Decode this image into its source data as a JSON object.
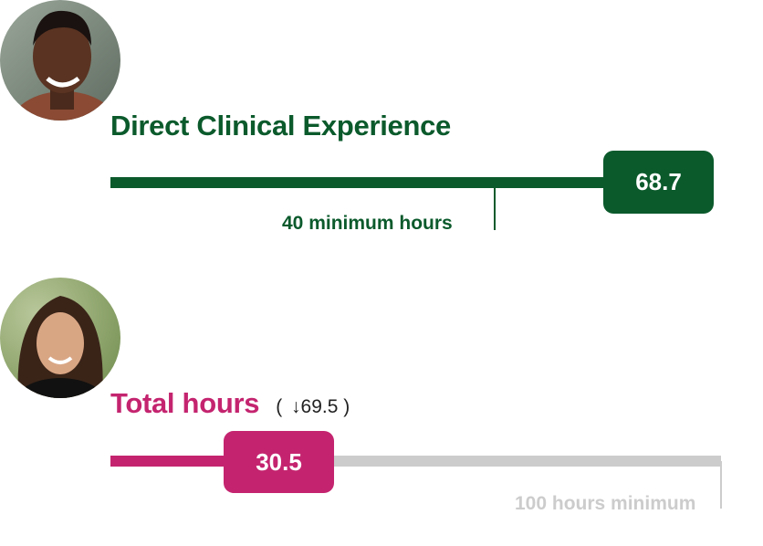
{
  "colors": {
    "green": "#0b5a2c",
    "pink": "#c4246f",
    "gray": "#cccccc"
  },
  "direct": {
    "title": "Direct Clinical Experience",
    "value": "68.7",
    "value_number": 68.7,
    "minimum_label": "40 minimum hours",
    "minimum": 40,
    "avatar_icon": "person-photo"
  },
  "total": {
    "title": "Total hours",
    "delta_open": "(",
    "delta_icon": "arrow-down-icon",
    "delta_value": "69.5",
    "delta_close": ")",
    "value": "30.5",
    "value_number": 30.5,
    "minimum_label": "100 hours minimum",
    "minimum": 100,
    "avatar_icon": "person-photo"
  }
}
